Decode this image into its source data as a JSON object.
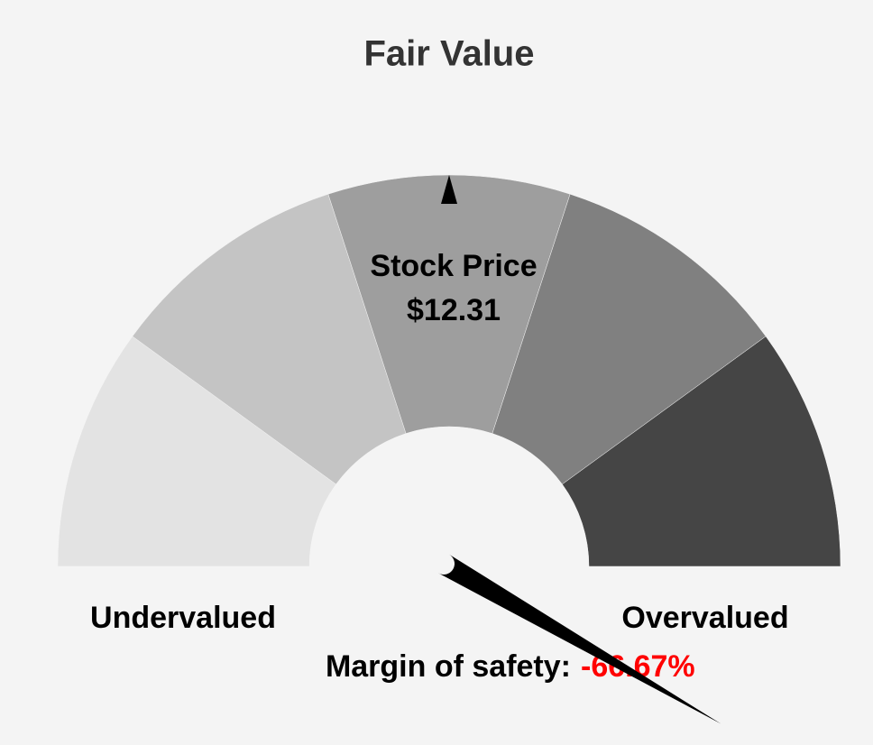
{
  "chart_data": {
    "type": "gauge",
    "title": "Fair Value",
    "lim": [
      50,
      -50
    ],
    "segments": [
      {
        "color": "#e3e3e3"
      },
      {
        "color": "#c4c4c4"
      },
      {
        "color": "#9e9e9e"
      },
      {
        "color": "#808080"
      },
      {
        "color": "#454545"
      }
    ],
    "left_label": "Undervalued",
    "right_label": "Overvalued",
    "price": {
      "label": "Stock Price",
      "value": 12.31,
      "value_label": "$12.31"
    },
    "margin_of_safety": {
      "label": "Margin of safety:",
      "value": -66.67,
      "value_label": "-66.67%",
      "color": "#ff0000"
    }
  }
}
